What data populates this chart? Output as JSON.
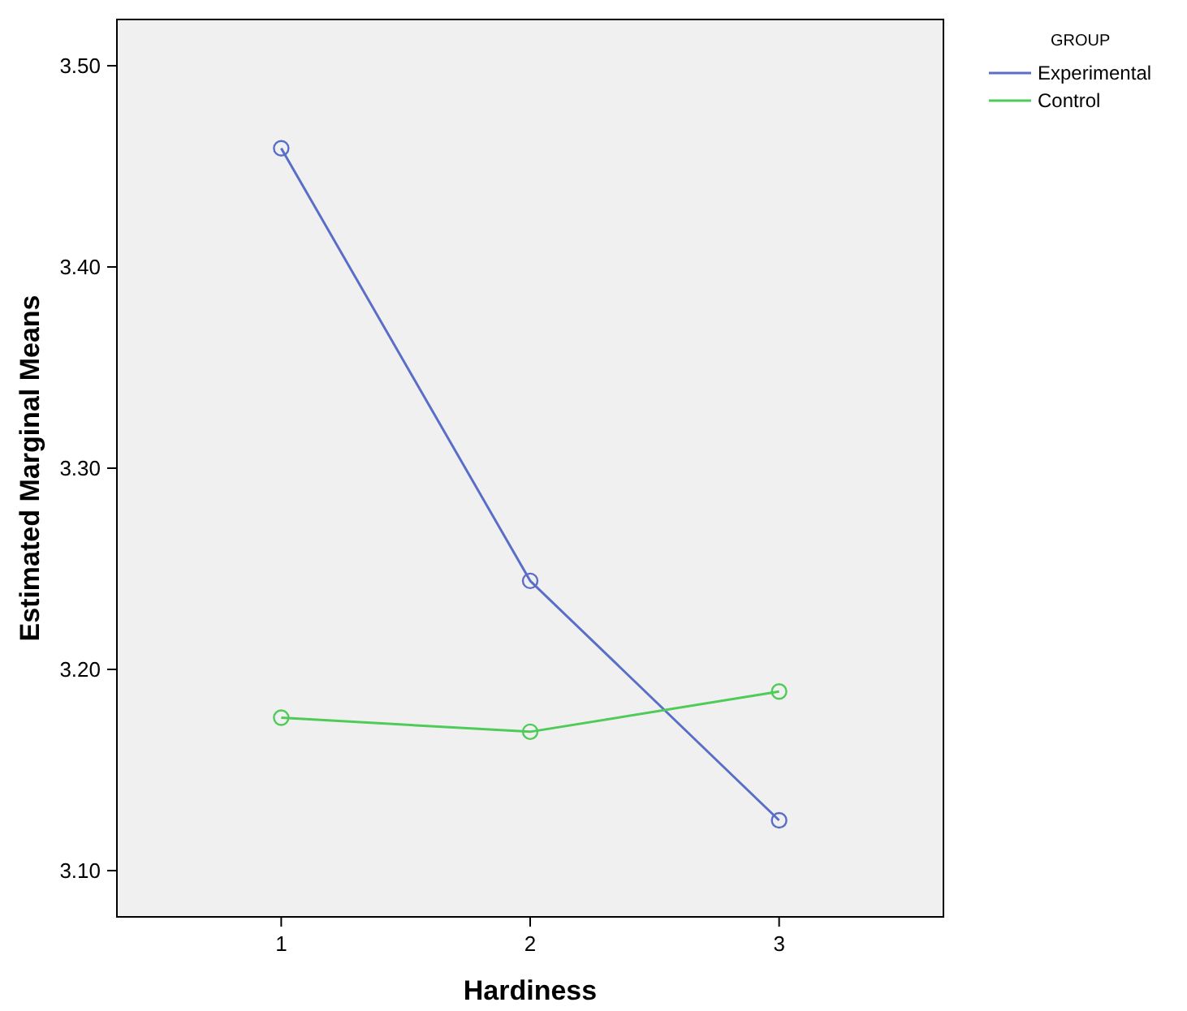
{
  "chart_data": {
    "type": "line",
    "xlabel": "Hardiness",
    "ylabel": "Estimated Marginal Means",
    "legend_title": "GROUP",
    "legend": "top right",
    "marker": "circle",
    "grid": false,
    "x": [
      1,
      2,
      3
    ],
    "xlim": [
      0.34,
      3.66
    ],
    "xticks": [
      1,
      2,
      3
    ],
    "ylim": [
      3.077,
      3.523
    ],
    "yticks": [
      {
        "value": 3.1,
        "label": "3.10"
      },
      {
        "value": 3.2,
        "label": "3.20"
      },
      {
        "value": 3.3,
        "label": "3.30"
      },
      {
        "value": 3.4,
        "label": "3.40"
      },
      {
        "value": 3.5,
        "label": "3.50"
      }
    ],
    "series": [
      {
        "name": "Experimental",
        "color": "#5a6ec8",
        "values": [
          3.459,
          3.244,
          3.125
        ]
      },
      {
        "name": "Control",
        "color": "#4ecb58",
        "values": [
          3.176,
          3.169,
          3.189
        ]
      }
    ]
  }
}
